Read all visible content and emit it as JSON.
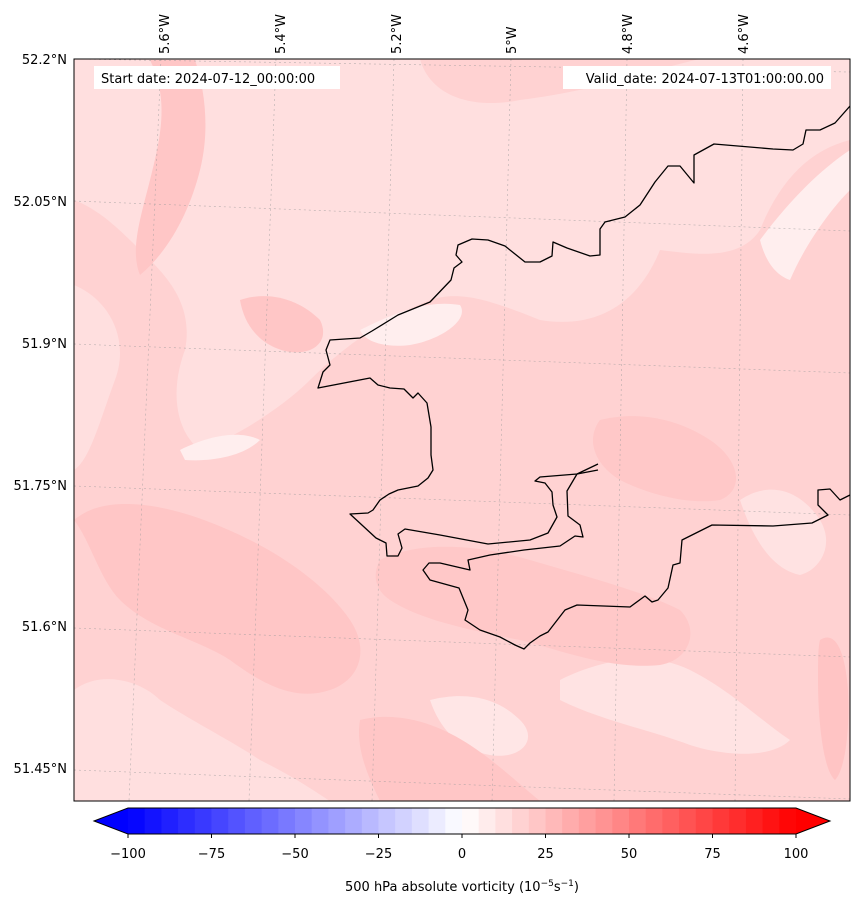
{
  "map": {
    "lon_labels": [
      "5.6°W",
      "5.4°W",
      "5.2°W",
      "5°W",
      "4.8°W",
      "4.6°W"
    ],
    "lat_labels": [
      "52.2°N",
      "52.05°N",
      "51.9°N",
      "51.75°N",
      "51.6°N",
      "51.45°N"
    ],
    "start_date": "Start date: 2024-07-12_00:00:00",
    "valid_date": "Valid_date: 2024-07-13T01:00:00.00",
    "field_range": [
      10,
      25
    ]
  },
  "colorbar": {
    "ticks": [
      "−100",
      "−75",
      "−50",
      "−25",
      "0",
      "25",
      "50",
      "75",
      "100"
    ],
    "label_prefix": "500 hPa absolute vorticity (10",
    "label_exp1": "−5",
    "label_mid": "s",
    "label_exp2": "−1",
    "label_suffix": ")",
    "vmin": -100,
    "vmax": 100,
    "colors": {
      "min": "#0000ff",
      "mid": "#ffffff",
      "max": "#ff0000"
    }
  }
}
